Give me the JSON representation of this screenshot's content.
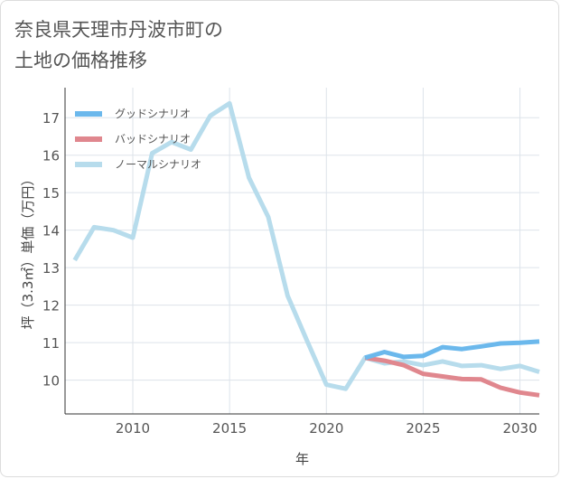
{
  "chart_data": {
    "type": "line",
    "title_lines": [
      "奈良県天理市丹波市町の",
      "土地の価格推移"
    ],
    "xlabel": "年",
    "ylabel": "坪（3.3㎡）単価（万円）",
    "xlim": [
      2006.5,
      2031
    ],
    "ylim": [
      9.1,
      17.8
    ],
    "x_ticks": [
      2010,
      2015,
      2020,
      2025,
      2030
    ],
    "y_ticks": [
      10,
      11,
      12,
      13,
      14,
      15,
      16,
      17
    ],
    "series": [
      {
        "name": "グッドシナリオ",
        "color": "#6bb8ec",
        "x": [
          2022,
          2023,
          2024,
          2025,
          2026,
          2027,
          2028,
          2029,
          2030,
          2031
        ],
        "values": [
          10.6,
          10.75,
          10.62,
          10.65,
          10.88,
          10.83,
          10.9,
          10.98,
          11.0,
          11.03
        ]
      },
      {
        "name": "バッドシナリオ",
        "color": "#e0878e",
        "x": [
          2022,
          2023,
          2024,
          2025,
          2026,
          2027,
          2028,
          2029,
          2030,
          2031
        ],
        "values": [
          10.6,
          10.52,
          10.4,
          10.17,
          10.1,
          10.03,
          10.02,
          9.8,
          9.67,
          9.6
        ]
      },
      {
        "name": "ノーマルシナリオ",
        "color": "#b7dcec",
        "x": [
          2007,
          2008,
          2009,
          2010,
          2011,
          2012,
          2013,
          2014,
          2015,
          2016,
          2017,
          2018,
          2019,
          2020,
          2021,
          2022,
          2023,
          2024,
          2025,
          2026,
          2027,
          2028,
          2029,
          2030,
          2031
        ],
        "values": [
          13.2,
          14.08,
          14.0,
          13.8,
          16.05,
          16.35,
          16.15,
          17.05,
          17.38,
          15.4,
          14.35,
          12.25,
          11.05,
          9.88,
          9.77,
          10.6,
          10.45,
          10.5,
          10.4,
          10.5,
          10.38,
          10.4,
          10.3,
          10.38,
          10.22
        ]
      }
    ],
    "legend_position": "top-left",
    "grid": true
  }
}
